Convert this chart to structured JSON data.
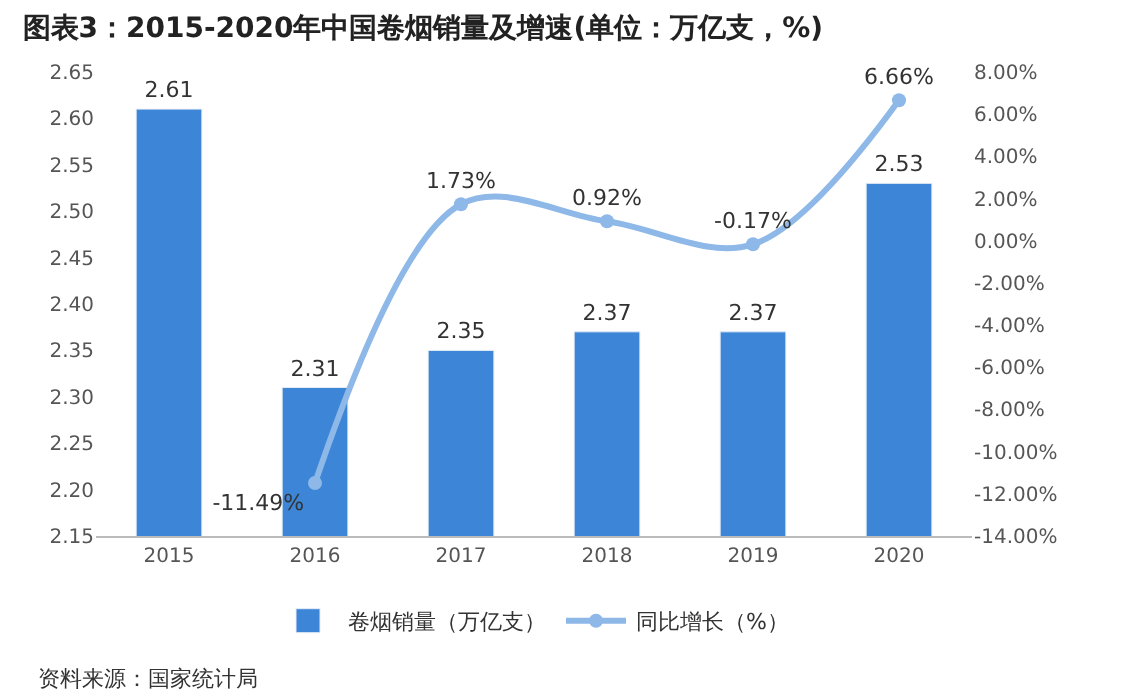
{
  "chart_data": {
    "type": "bar",
    "title": "图表3：2015-2020年中国卷烟销量及增速(单位：万亿支，%)",
    "categories": [
      "2015",
      "2016",
      "2017",
      "2018",
      "2019",
      "2020"
    ],
    "series": [
      {
        "name": "卷烟销量（万亿支）",
        "color": "#3d85d6",
        "values": [
          2.61,
          2.31,
          2.35,
          2.37,
          2.37,
          2.53
        ],
        "value_labels": [
          "2.61",
          "2.31",
          "2.35",
          "2.37",
          "2.37",
          "2.53"
        ]
      },
      {
        "name": "同比增长（%）",
        "type": "line",
        "axis": "y2",
        "color": "#8db8e8",
        "marker": "circle",
        "values": [
          null,
          -11.49,
          1.73,
          0.92,
          -0.17,
          6.66
        ],
        "value_labels": [
          null,
          "-11.49%",
          "1.73%",
          "0.92%",
          "-0.17%",
          "6.66%"
        ]
      }
    ],
    "ylim": [
      2.15,
      2.65
    ],
    "yticks": [
      2.15,
      {
        "value": 2.2,
        "label": "2.20"
      },
      2.25,
      {
        "value": 2.3,
        "label": "2.30"
      },
      2.35,
      {
        "value": 2.4,
        "label": "2.40"
      },
      2.45,
      {
        "value": 2.5,
        "label": "2.50"
      },
      2.55,
      {
        "value": 2.6,
        "label": "2.60"
      },
      2.65
    ],
    "y2lim": [
      -14,
      8
    ],
    "y2ticks": [
      {
        "value": -14,
        "label": "-14.00%"
      },
      {
        "value": -12,
        "label": "-12.00%"
      },
      {
        "value": -10,
        "label": "-10.00%"
      },
      {
        "value": -8,
        "label": "-8.00%"
      },
      {
        "value": -6,
        "label": "-6.00%"
      },
      {
        "value": -4,
        "label": "-4.00%"
      },
      {
        "value": -2,
        "label": "-2.00%"
      },
      {
        "value": 0,
        "label": "0.00%"
      },
      {
        "value": 2,
        "label": "2.00%"
      },
      {
        "value": 4,
        "label": "4.00%"
      },
      {
        "value": 6,
        "label": "6.00%"
      },
      {
        "value": 8,
        "label": "8.00%"
      }
    ],
    "legend": "bottom",
    "annotations": [
      "资料来源：国家统计局"
    ]
  }
}
